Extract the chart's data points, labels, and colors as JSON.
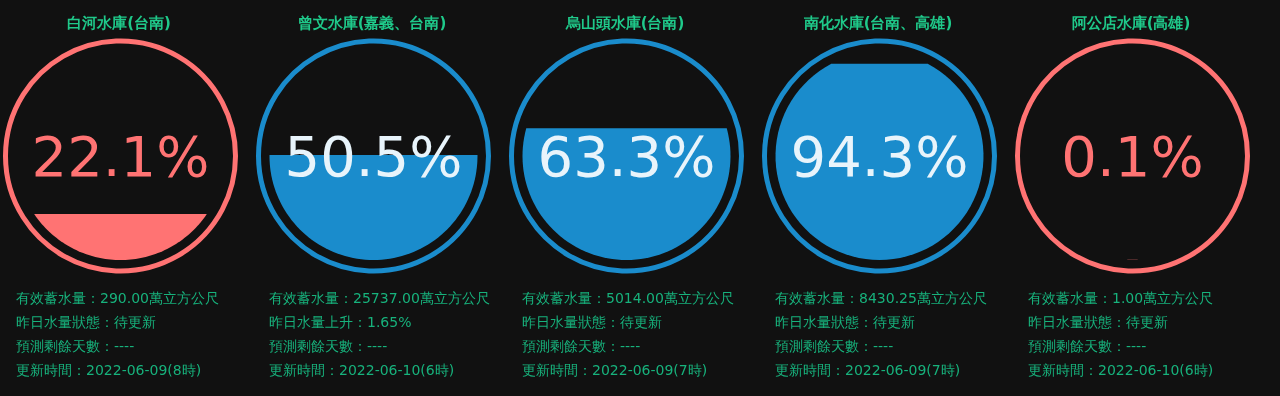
{
  "chart_data": [
    {
      "type": "other",
      "title": "白河水庫(台南)",
      "values": [
        22.1
      ],
      "value_labels": [
        "22.1%"
      ],
      "colors": [
        "#ff7373"
      ],
      "annotations": [
        "有效蓄水量：290.00萬立方公尺",
        "昨日水量狀態：待更新",
        "預測剩餘天數：----",
        "更新時間：2022-06-09(8時)"
      ]
    },
    {
      "type": "other",
      "title": "曾文水庫(嘉義、台南)",
      "values": [
        50.5
      ],
      "value_labels": [
        "50.5%"
      ],
      "colors": [
        "#1a8ccc"
      ],
      "annotations": [
        "有效蓄水量：25737.00萬立方公尺",
        "昨日水量上升：1.65%",
        "預測剩餘天數：----",
        "更新時間：2022-06-10(6時)"
      ]
    },
    {
      "type": "other",
      "title": "烏山頭水庫(台南)",
      "values": [
        63.3
      ],
      "value_labels": [
        "63.3%"
      ],
      "colors": [
        "#1a8ccc"
      ],
      "annotations": [
        "有效蓄水量：5014.00萬立方公尺",
        "昨日水量狀態：待更新",
        "預測剩餘天數：----",
        "更新時間：2022-06-09(7時)"
      ]
    },
    {
      "type": "other",
      "title": "南化水庫(台南、高雄)",
      "values": [
        94.3
      ],
      "value_labels": [
        "94.3%"
      ],
      "colors": [
        "#1a8ccc"
      ],
      "annotations": [
        "有效蓄水量：8430.25萬立方公尺",
        "昨日水量狀態：待更新",
        "預測剩餘天數：----",
        "更新時間：2022-06-09(7時)"
      ]
    },
    {
      "type": "other",
      "title": "阿公店水庫(高雄)",
      "values": [
        0.1
      ],
      "value_labels": [
        "0.1%"
      ],
      "colors": [
        "#ff7373"
      ],
      "annotations": [
        "有效蓄水量：1.00萬立方公尺",
        "昨日水量狀態：待更新",
        "預測剩餘天數：----",
        "更新時間：2022-06-10(6時)"
      ]
    }
  ]
}
